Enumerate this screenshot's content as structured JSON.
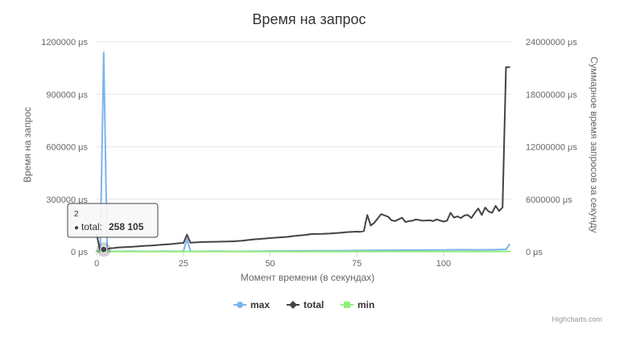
{
  "chart_data": {
    "type": "line",
    "title": "Время на запрос",
    "xlabel": "Момент времени (в секундах)",
    "ylabel_left": "Время на запрос",
    "ylabel_right": "Суммарное время запросов за секунду",
    "x_ticks": [
      0,
      25,
      50,
      75,
      100
    ],
    "x_range": [
      -0.5,
      119.5
    ],
    "y_left": {
      "ticks": [
        "0 μs",
        "300000 μs",
        "600000 μs",
        "900000 μs",
        "1200000 μs"
      ],
      "tick_values": [
        0,
        300000,
        600000,
        900000,
        1200000
      ],
      "range": [
        0,
        1200000
      ]
    },
    "y_right": {
      "ticks": [
        "0 μs",
        "6000000 μs",
        "12000000 μs",
        "18000000 μs",
        "24000000 μs"
      ],
      "tick_values": [
        0,
        6000000,
        12000000,
        18000000,
        24000000
      ],
      "range": [
        0,
        24000000
      ]
    },
    "grid": true,
    "legend_position": "bottom",
    "colors": {
      "max": "#7cb5ec",
      "total": "#434348",
      "min": "#90ed7d",
      "grid": "#e6e6e6",
      "axis": "#ccd6eb"
    },
    "series": [
      {
        "name": "max",
        "axis": "left",
        "x": [
          0,
          1,
          2,
          3,
          4,
          5,
          10,
          15,
          20,
          24,
          25,
          26,
          27,
          28,
          35,
          40,
          50,
          60,
          70,
          80,
          90,
          100,
          105,
          110,
          115,
          118,
          119
        ],
        "values": [
          5000,
          3000,
          1140000,
          5000,
          3000,
          2000,
          3000,
          2000,
          3000,
          2000,
          3000,
          72000,
          3000,
          2000,
          3000,
          2000,
          4000,
          5000,
          6000,
          8000,
          9000,
          10000,
          12000,
          11000,
          12000,
          14000,
          42000
        ]
      },
      {
        "name": "total",
        "axis": "right",
        "x": [
          0,
          1,
          2,
          3,
          4,
          5,
          6,
          10,
          12,
          14,
          16,
          18,
          20,
          22,
          24,
          25,
          26,
          27,
          28,
          30,
          32,
          34,
          36,
          38,
          40,
          42,
          45,
          48,
          50,
          52,
          55,
          57,
          60,
          62,
          65,
          67,
          70,
          72,
          75,
          76,
          77,
          78,
          79,
          80,
          82,
          84,
          85,
          86,
          87,
          88,
          89,
          90,
          91,
          92,
          94,
          96,
          97,
          98,
          100,
          101,
          102,
          103,
          104,
          105,
          106,
          107,
          108,
          109,
          110,
          111,
          112,
          113,
          114,
          115,
          116,
          117,
          118,
          119
        ],
        "values": [
          2000000,
          0,
          258105,
          300000,
          400000,
          420000,
          480000,
          560000,
          620000,
          680000,
          720000,
          780000,
          840000,
          900000,
          980000,
          1000000,
          1950000,
          1030000,
          1060000,
          1100000,
          1120000,
          1140000,
          1160000,
          1180000,
          1200000,
          1260000,
          1400000,
          1500000,
          1560000,
          1620000,
          1700000,
          1800000,
          1920000,
          2020000,
          2040000,
          2080000,
          2160000,
          2240000,
          2300000,
          2280000,
          2360000,
          4200000,
          3000000,
          3300000,
          4300000,
          4000000,
          3600000,
          3500000,
          3700000,
          3900000,
          3400000,
          3500000,
          3550000,
          3700000,
          3550000,
          3600000,
          3500000,
          3700000,
          3450000,
          3550000,
          4450000,
          3900000,
          4050000,
          3850000,
          4150000,
          4200000,
          3850000,
          4450000,
          4950000,
          4200000,
          5050000,
          4600000,
          4450000,
          5250000,
          4650000,
          5050000,
          21100000,
          21100000
        ]
      },
      {
        "name": "min",
        "axis": "left",
        "x": [
          0,
          10,
          20,
          30,
          40,
          50,
          60,
          70,
          80,
          90,
          100,
          110,
          119
        ],
        "values": [
          1000,
          1500,
          1000,
          1200,
          1100,
          1300,
          1200,
          1400,
          1300,
          1200,
          1500,
          1400,
          2000
        ]
      }
    ],
    "tooltip": {
      "x": 2,
      "x_label": "2",
      "series": "total",
      "label": "total:",
      "value": "258 105"
    },
    "credits": "Highcharts.com"
  }
}
